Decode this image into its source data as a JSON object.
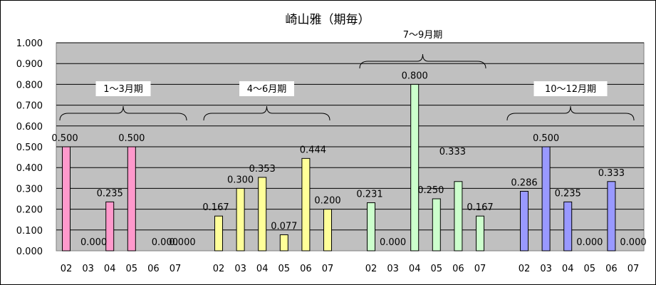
{
  "chart_data": {
    "type": "bar",
    "title": "崎山雅（期毎）",
    "xlabel": "",
    "ylabel": "",
    "ylim": [
      0,
      1.0
    ],
    "yticks": [
      "0.000",
      "0.100",
      "0.200",
      "0.300",
      "0.400",
      "0.500",
      "0.600",
      "0.700",
      "0.800",
      "0.900",
      "1.000"
    ],
    "grid": true,
    "groups": [
      {
        "label": "1～3月期",
        "color": "#ff99cc",
        "categories": [
          "02",
          "03",
          "04",
          "05",
          "06",
          "07"
        ],
        "values": [
          0.5,
          0.0,
          0.235,
          0.5,
          0.0,
          0.0
        ],
        "labels": [
          "0.500",
          "0.000",
          "0.235",
          "0.500",
          "0.000",
          "0.000"
        ]
      },
      {
        "label": "4～6月期",
        "color": "#ffff99",
        "categories": [
          "02",
          "03",
          "04",
          "05",
          "06",
          "07"
        ],
        "values": [
          0.167,
          0.3,
          0.353,
          0.077,
          0.444,
          0.2
        ],
        "labels": [
          "0.167",
          "0.300",
          "0.353",
          "0.077",
          "0.444",
          "0.200"
        ]
      },
      {
        "label": "7～9月期",
        "color": "#ccffcc",
        "categories": [
          "02",
          "03",
          "04",
          "05",
          "06",
          "07"
        ],
        "values": [
          0.231,
          0.0,
          0.8,
          0.25,
          0.333,
          0.167
        ],
        "labels": [
          "0.231",
          "0.000",
          "0.800",
          "0.250",
          "0.333",
          "0.167"
        ]
      },
      {
        "label": "10～12月期",
        "color": "#9999ff",
        "categories": [
          "02",
          "03",
          "04",
          "05",
          "06",
          "07"
        ],
        "values": [
          0.286,
          0.5,
          0.235,
          0.0,
          0.333,
          0.0
        ],
        "labels": [
          "0.286",
          "0.500",
          "0.235",
          "0.000",
          "0.333",
          "0.000"
        ]
      }
    ]
  }
}
